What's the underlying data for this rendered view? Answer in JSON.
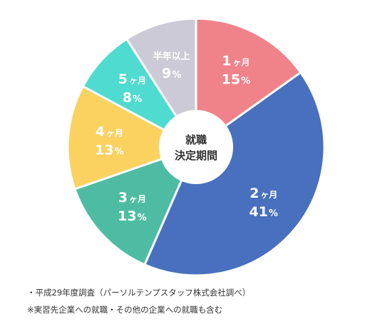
{
  "chart_data": {
    "type": "pie",
    "donut": true,
    "center_text": [
      "就職",
      "決定期間"
    ],
    "start": "top",
    "direction": "clockwise",
    "slices": [
      {
        "name": "1ヶ月",
        "num": "1",
        "unit": "ヶ月",
        "value": 15,
        "label": "15%",
        "pct_num": "15",
        "color": "#f0838a"
      },
      {
        "name": "2ヶ月",
        "num": "2",
        "unit": "ヶ月",
        "value": 41,
        "label": "41%",
        "pct_num": "41",
        "color": "#4870be"
      },
      {
        "name": "3ヶ月",
        "num": "3",
        "unit": "ヶ月",
        "value": 13,
        "label": "13%",
        "pct_num": "13",
        "color": "#4ebca3"
      },
      {
        "name": "4ヶ月",
        "num": "4",
        "unit": "ヶ月",
        "value": 13,
        "label": "13%",
        "pct_num": "13",
        "color": "#fbd160"
      },
      {
        "name": "5ヶ月",
        "num": "5",
        "unit": "ヶ月",
        "value": 8,
        "label": "8%",
        "pct_num": "8",
        "color": "#4fdbd0"
      },
      {
        "name": "半年以上",
        "num": "",
        "unit": "半年以上",
        "value": 9,
        "label": "9%",
        "pct_num": "9",
        "color": "#cbcad6"
      }
    ]
  },
  "notes": {
    "source": "・平成29年度調査（パーソルテンプスタッフ株式会社調べ）",
    "footnote": "※実習先企業への就職・その他の企業への就職も含む"
  }
}
